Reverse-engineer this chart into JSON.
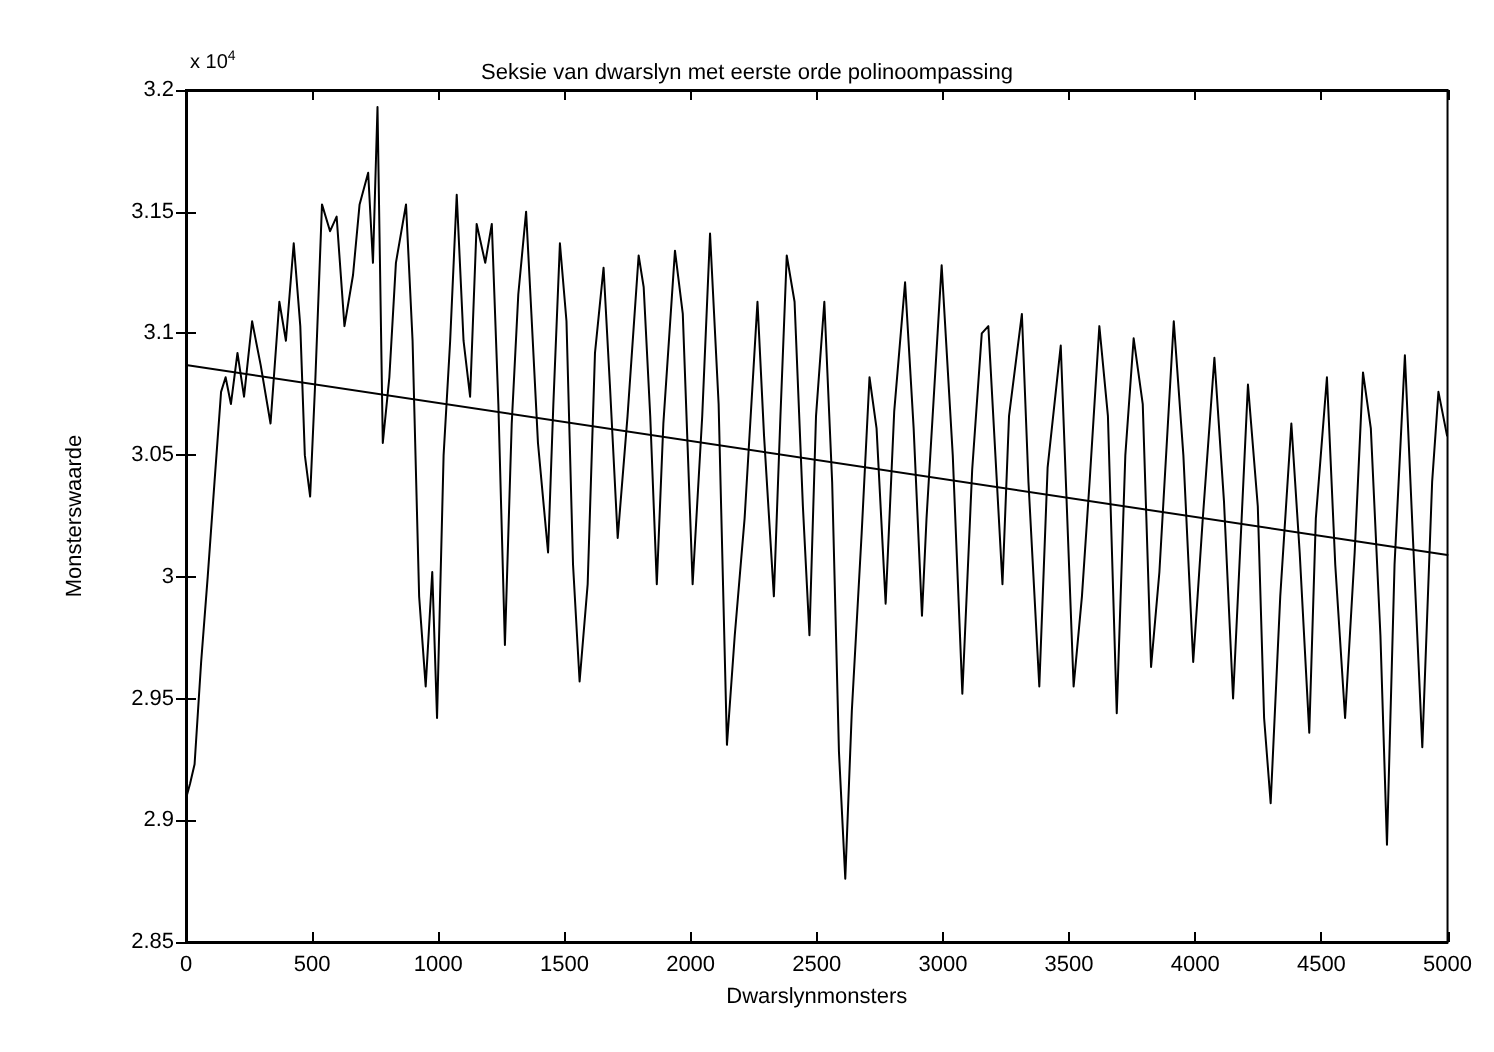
{
  "chart_data": {
    "type": "line",
    "title": "Seksie van dwarslyn met eerste orde polinoompassing",
    "xlabel": "Dwarslynmonsters",
    "ylabel": "Monsterswaarde",
    "annotations": [
      "x 10$^{4}$"
    ],
    "xlim": [
      0,
      5000
    ],
    "xticks": [
      0,
      500,
      1000,
      1500,
      2000,
      2500,
      3000,
      3500,
      4000,
      4500,
      5000
    ],
    "ylim": [
      2.85,
      3.2
    ],
    "yticks": [
      2.85,
      2.9,
      2.95,
      3,
      3.05,
      3.1,
      3.15,
      3.2
    ],
    "grid": false,
    "marker": "none",
    "line_style": "solid",
    "series": [
      {
        "color": "#000000",
        "x": [
          0,
          16,
          34,
          60,
          86,
          113,
          139,
          157,
          178,
          204,
          230,
          262,
          296,
          335,
          370,
          396,
          427,
          453,
          471,
          492,
          513,
          539,
          571,
          597,
          628,
          662,
          688,
          722,
          741,
          759,
          780,
          806,
          832,
          872,
          898,
          924,
          950,
          976,
          995,
          1021,
          1047,
          1073,
          1100,
          1126,
          1152,
          1186,
          1212,
          1238,
          1264,
          1291,
          1317,
          1348,
          1369,
          1395,
          1435,
          1456,
          1482,
          1508,
          1534,
          1560,
          1592,
          1621,
          1655,
          1680,
          1711,
          1750,
          1794,
          1814,
          1840,
          1866,
          1892,
          1938,
          1969,
          2008,
          2046,
          2077,
          2111,
          2144,
          2175,
          2214,
          2265,
          2291,
          2330,
          2356,
          2381,
          2412,
          2445,
          2471,
          2497,
          2530,
          2561,
          2588,
          2613,
          2639,
          2678,
          2709,
          2737,
          2773,
          2807,
          2850,
          2884,
          2917,
          2935,
          2995,
          3039,
          3077,
          3116,
          3154,
          3180,
          3236,
          3262,
          3313,
          3339,
          3382,
          3415,
          3467,
          3518,
          3551,
          3582,
          3620,
          3654,
          3689,
          3723,
          3756,
          3792,
          3825,
          3858,
          3915,
          3953,
          3992,
          4030,
          4076,
          4114,
          4150,
          4184,
          4209,
          4248,
          4273,
          4299,
          4337,
          4381,
          4414,
          4452,
          4478,
          4522,
          4555,
          4594,
          4632,
          4665,
          4696,
          4734,
          4760,
          4790,
          4831,
          4862,
          4900,
          4939,
          4964,
          4998
        ],
        "values": [
          2.909,
          2.915,
          2.923,
          2.965,
          3.0,
          3.039,
          3.076,
          3.082,
          3.071,
          3.092,
          3.074,
          3.105,
          3.087,
          3.063,
          3.113,
          3.097,
          3.137,
          3.103,
          3.05,
          3.033,
          3.082,
          3.153,
          3.142,
          3.148,
          3.103,
          3.124,
          3.153,
          3.166,
          3.129,
          3.193,
          3.055,
          3.082,
          3.129,
          3.153,
          3.097,
          2.992,
          2.955,
          3.002,
          2.942,
          3.05,
          3.097,
          3.157,
          3.097,
          3.074,
          3.145,
          3.129,
          3.145,
          3.071,
          2.972,
          3.063,
          3.116,
          3.15,
          3.108,
          3.055,
          3.01,
          3.071,
          3.137,
          3.105,
          3.005,
          2.957,
          2.997,
          3.092,
          3.127,
          3.079,
          3.016,
          3.066,
          3.132,
          3.119,
          3.066,
          2.997,
          3.063,
          3.134,
          3.108,
          2.997,
          3.066,
          3.141,
          3.071,
          2.931,
          2.976,
          3.024,
          3.113,
          3.058,
          2.992,
          3.066,
          3.132,
          3.113,
          3.029,
          2.976,
          3.066,
          3.113,
          3.039,
          2.928,
          2.876,
          2.945,
          3.018,
          3.082,
          3.061,
          2.989,
          3.068,
          3.121,
          3.061,
          2.984,
          3.024,
          3.128,
          3.05,
          2.952,
          3.044,
          3.1,
          3.103,
          2.997,
          3.066,
          3.108,
          3.039,
          2.955,
          3.045,
          3.095,
          2.955,
          2.992,
          3.04,
          3.103,
          3.066,
          2.944,
          3.05,
          3.098,
          3.071,
          2.963,
          3.002,
          3.105,
          3.05,
          2.965,
          3.024,
          3.09,
          3.031,
          2.95,
          3.024,
          3.079,
          3.029,
          2.942,
          2.907,
          2.992,
          3.063,
          3.01,
          2.936,
          3.024,
          3.082,
          3.005,
          2.942,
          3.01,
          3.084,
          3.061,
          2.976,
          2.89,
          3.005,
          3.091,
          3.018,
          2.93,
          3.039,
          3.076,
          3.058
        ]
      },
      {
        "color": "#000000",
        "x": [
          0,
          5000
        ],
        "values": [
          3.087,
          3.009
        ]
      }
    ]
  }
}
